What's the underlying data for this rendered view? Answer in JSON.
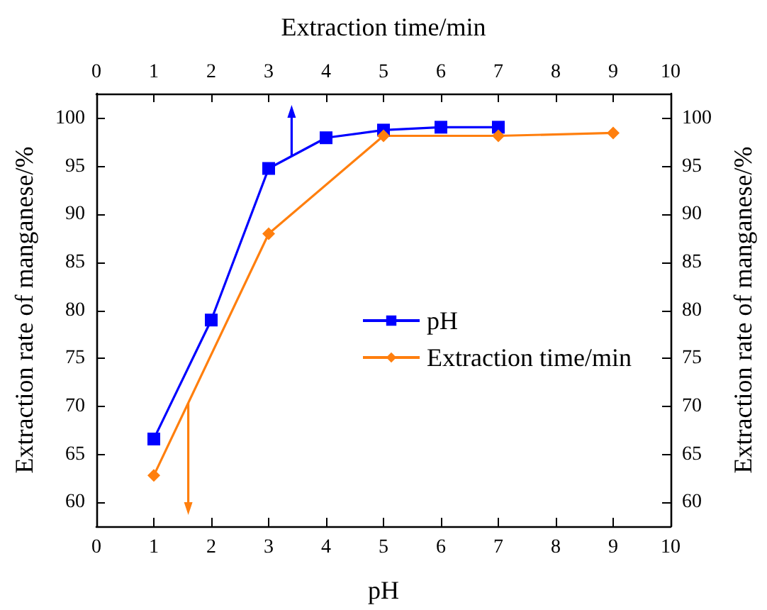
{
  "chart_data": {
    "type": "line",
    "xlabel": "pH",
    "x2label": "Extraction time/min",
    "ylabel": "Extraction rate of manganese/%",
    "y2label": "Extraction rate of manganese/%",
    "xlim": [
      0,
      10
    ],
    "xticks": [
      0,
      1,
      2,
      3,
      4,
      5,
      6,
      7,
      8,
      9,
      10
    ],
    "x2lim": [
      0,
      10
    ],
    "x2ticks": [
      0,
      1,
      2,
      3,
      4,
      5,
      6,
      7,
      8,
      9,
      10
    ],
    "ylim": [
      57.5,
      102.6
    ],
    "yticks": [
      60,
      65,
      70,
      75,
      80,
      85,
      90,
      95,
      100
    ],
    "y2lim": [
      57.5,
      102.6
    ],
    "y2ticks": [
      60,
      65,
      70,
      75,
      80,
      85,
      90,
      95,
      100
    ],
    "series": [
      {
        "name": "pH",
        "color": "#0000ff",
        "marker": "square",
        "x": [
          1,
          2,
          3,
          4,
          5,
          6,
          7
        ],
        "values": [
          66.6,
          79,
          94.8,
          98,
          98.8,
          99.1,
          99.1
        ]
      },
      {
        "name": "Extraction time/min",
        "color": "#ff7f0e",
        "marker": "diamond",
        "axis": "x2",
        "x": [
          1,
          3,
          5,
          7,
          9
        ],
        "values": [
          62.8,
          88,
          98.2,
          98.2,
          98.5
        ]
      }
    ],
    "grid": false,
    "legend": "center",
    "line_style": "solid"
  }
}
